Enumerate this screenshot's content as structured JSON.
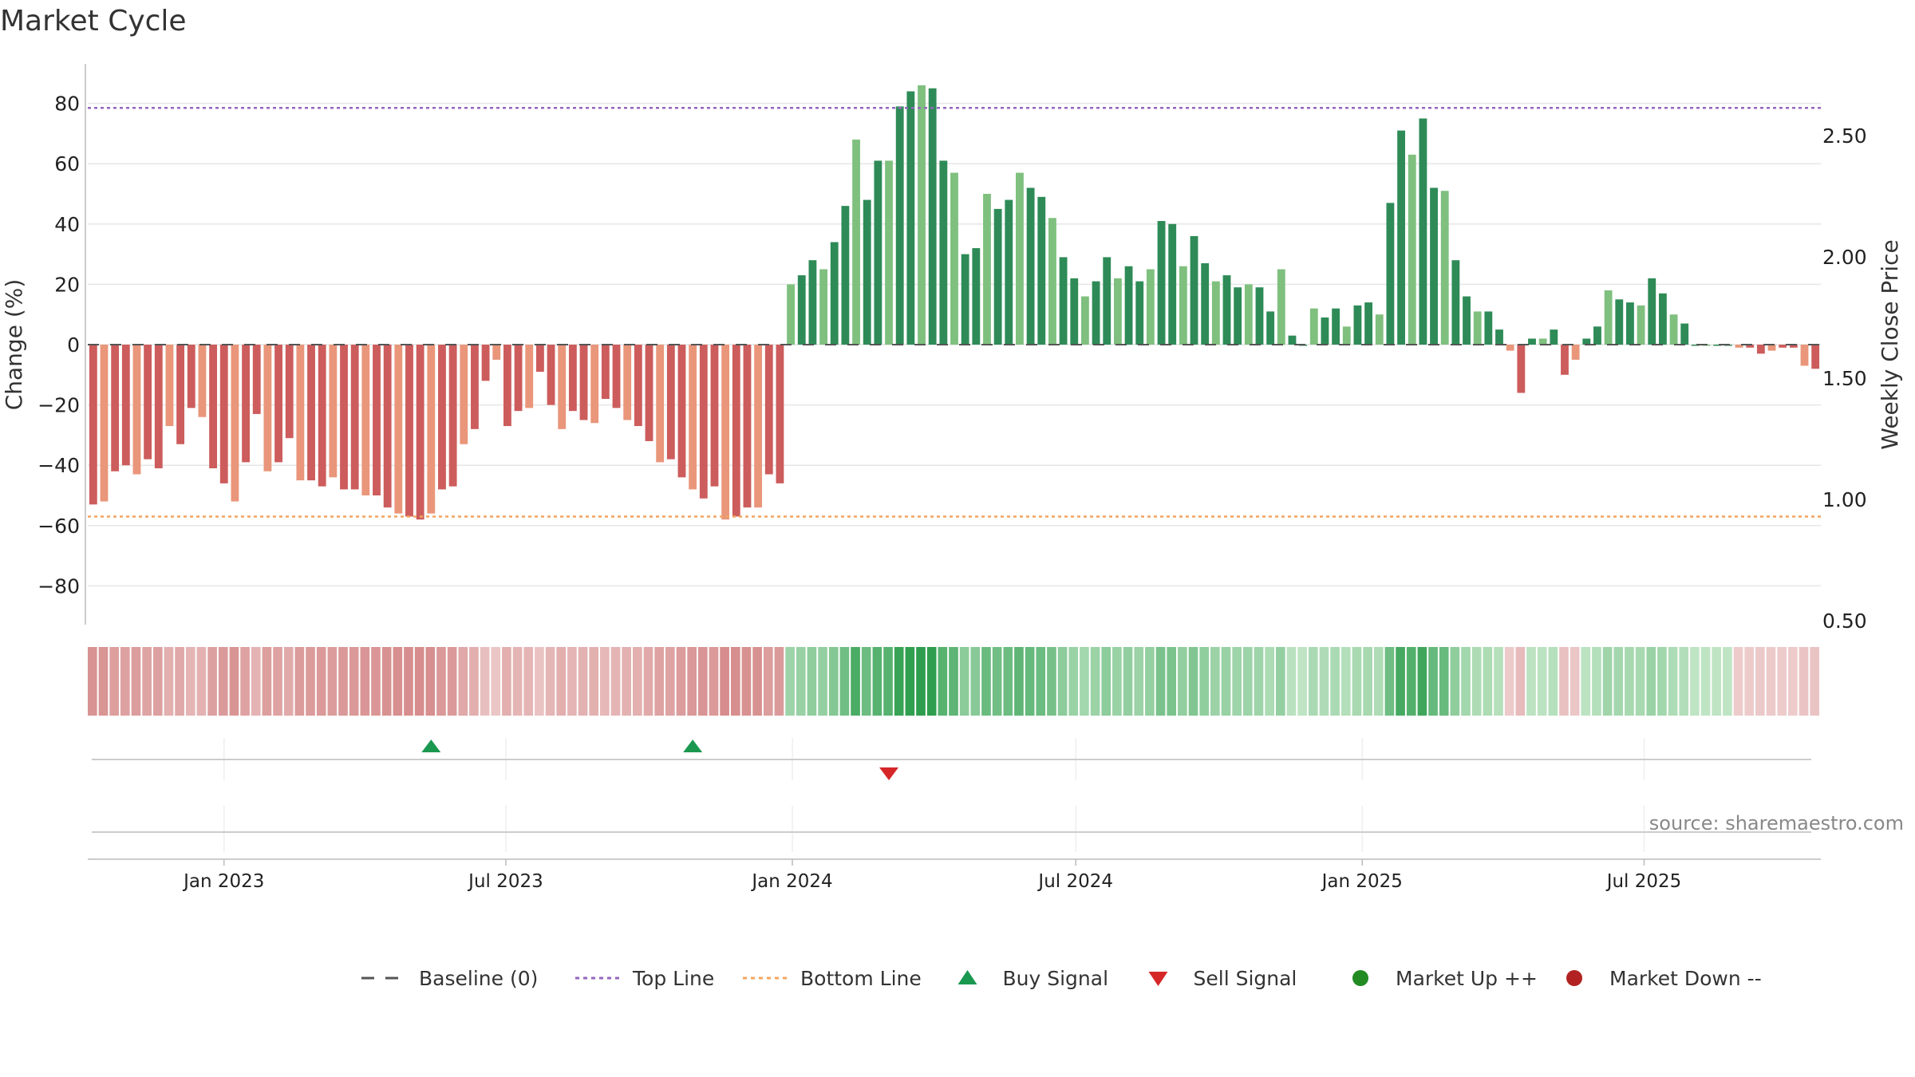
{
  "title": "Market Cycle",
  "source": "source: sharemaestro.com",
  "legend": [
    {
      "label": "Baseline (0)",
      "icon": "dash-line"
    },
    {
      "label": "Top Line",
      "icon": "dotted-line"
    },
    {
      "label": "Bottom Line",
      "icon": "dotted-line"
    },
    {
      "label": "Buy Signal",
      "icon": "triangle-up"
    },
    {
      "label": "Sell Signal",
      "icon": "triangle-down"
    },
    {
      "label": "Market Up ++",
      "icon": "circle"
    },
    {
      "label": "Market Down --",
      "icon": "circle"
    }
  ],
  "colors": {
    "pos_dark": "#2e8b57",
    "pos_light": "#7fc07f",
    "neg_dark": "#cd5c5c",
    "neg_light": "#e9967a",
    "top_line": "#9467bd",
    "bottom_line": "#f4a460",
    "buy": "#1a9850",
    "sell": "#d62728",
    "market_up": "#228b22",
    "market_down": "#b22222",
    "baseline": "#555555"
  },
  "chart_data": {
    "type": "bar",
    "start_date": "2022-10-09",
    "interval": "weekly",
    "series_name": "Change (%)",
    "ylabel": "Change (%)",
    "y2label": "Weekly Close Price",
    "ylim": [
      -92,
      93
    ],
    "y_ticks": [
      80,
      60,
      40,
      20,
      0,
      -20,
      -40,
      -60,
      -80
    ],
    "y2lim": [
      0.5,
      2.75
    ],
    "y2_ticks": [
      "2.50",
      "2.00",
      "1.50",
      "1.00",
      "0.50"
    ],
    "top_line": 78.5,
    "bottom_line": -57,
    "x_ticks": [
      {
        "label": "Jan 2023",
        "date": "2023-01-01"
      },
      {
        "label": "Jul 2023",
        "date": "2023-07-01"
      },
      {
        "label": "Jan 2024",
        "date": "2024-01-01"
      },
      {
        "label": "Jul 2024",
        "date": "2024-07-01"
      },
      {
        "label": "Jan 2025",
        "date": "2025-01-01"
      },
      {
        "label": "Jul 2025",
        "date": "2025-07-01"
      }
    ],
    "values": [
      -53,
      -52,
      -42,
      -40,
      -43,
      -38,
      -41,
      -27,
      -33,
      -21,
      -24,
      -41,
      -46,
      -52,
      -39,
      -23,
      -42,
      -39,
      -31,
      -45,
      -45,
      -47,
      -44,
      -48,
      -48,
      -50,
      -50,
      -54,
      -56,
      -57,
      -58,
      -56,
      -48,
      -47,
      -33,
      -28,
      -12,
      -5,
      -27,
      -22,
      -21,
      -9,
      -20,
      -28,
      -22,
      -25,
      -26,
      -18,
      -21,
      -25,
      -27,
      -32,
      -39,
      -38,
      -44,
      -48,
      -51,
      -47,
      -58,
      -57,
      -54,
      -54,
      -43,
      -46,
      20,
      23,
      28,
      25,
      34,
      46,
      68,
      48,
      61,
      61,
      79,
      84,
      86,
      85,
      61,
      57,
      30,
      32,
      50,
      45,
      48,
      57,
      52,
      49,
      42,
      29,
      22,
      16,
      21,
      29,
      22,
      26,
      21,
      25,
      41,
      40,
      26,
      36,
      27,
      21,
      23,
      19,
      20,
      19,
      11,
      25,
      3,
      0,
      12,
      9,
      12,
      6,
      13,
      14,
      10,
      47,
      71,
      63,
      75,
      52,
      51,
      28,
      16,
      11,
      11,
      5,
      -2,
      -16,
      2,
      2,
      5,
      -10,
      -5,
      2,
      6,
      18,
      15,
      14,
      13,
      22,
      17,
      10,
      7,
      0,
      0,
      0,
      0,
      -1,
      -1,
      -3,
      -2,
      -1,
      -1,
      -7,
      -8
    ],
    "buy_signals": [
      "2023-05-14",
      "2023-10-29"
    ],
    "sell_signals": [
      "2024-03-03"
    ]
  }
}
